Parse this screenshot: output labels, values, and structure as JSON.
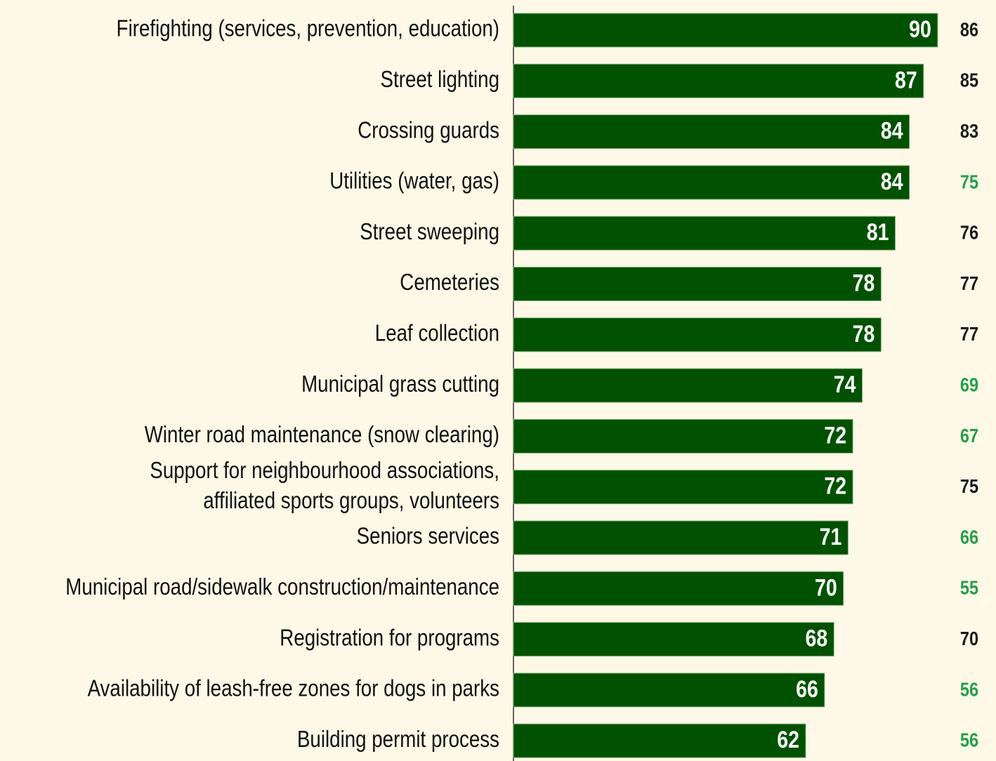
{
  "chart_data": {
    "type": "bar",
    "categories": [
      "Firefighting (services, prevention, education)",
      "Street lighting",
      "Crossing guards",
      "Utilities (water, gas)",
      "Street sweeping",
      "Cemeteries",
      "Leaf collection",
      "Municipal grass cutting",
      "Winter road maintenance (snow clearing)",
      "Support for neighbourhood associations,\naffiliated sports groups, volunteers",
      "Seniors services",
      "Municipal road/sidewalk construction/maintenance",
      "Registration for programs",
      "Availability of leash-free zones for dogs in parks",
      "Building permit process"
    ],
    "series": [
      {
        "color": "#005200",
        "values": [
          90,
          87,
          84,
          84,
          81,
          78,
          78,
          74,
          72,
          72,
          71,
          70,
          68,
          66,
          62
        ]
      },
      {
        "colors": [
          "#1a1a1a",
          "#1a1a1a",
          "#1a1a1a",
          "#22a04c",
          "#1a1a1a",
          "#1a1a1a",
          "#1a1a1a",
          "#22a04c",
          "#22a04c",
          "#1a1a1a",
          "#22a04c",
          "#22a04c",
          "#1a1a1a",
          "#22a04c",
          "#22a04c"
        ],
        "values": [
          86,
          85,
          83,
          75,
          76,
          77,
          77,
          69,
          67,
          75,
          66,
          55,
          70,
          56,
          56
        ]
      }
    ]
  }
}
